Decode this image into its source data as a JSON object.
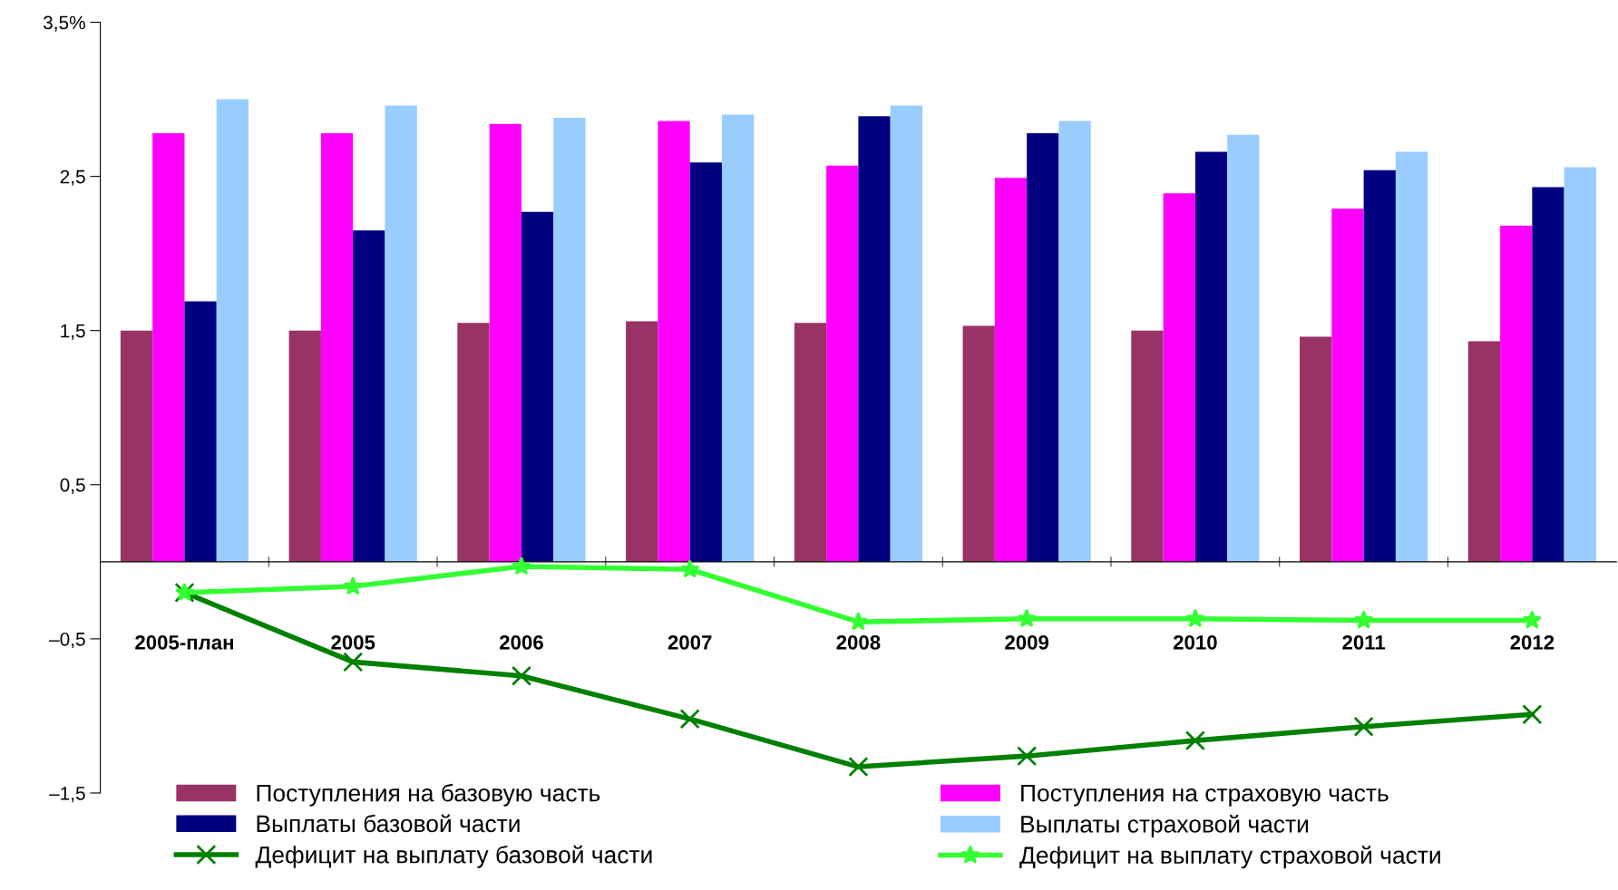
{
  "chart_data": {
    "type": "bar",
    "categories": [
      "2005-план",
      "2005",
      "2006",
      "2007",
      "2008",
      "2009",
      "2010",
      "2011",
      "2012"
    ],
    "series": [
      {
        "name": "Поступления на базовую часть",
        "color": "#993366",
        "values": [
          1.5,
          1.5,
          1.55,
          1.56,
          1.55,
          1.53,
          1.5,
          1.46,
          1.43
        ]
      },
      {
        "name": "Поступления на страховую часть",
        "color": "#ff00ff",
        "values": [
          2.78,
          2.78,
          2.84,
          2.86,
          2.57,
          2.49,
          2.39,
          2.29,
          2.18
        ]
      },
      {
        "name": "Выплаты базовой части",
        "color": "#000080",
        "values": [
          1.69,
          2.15,
          2.27,
          2.59,
          2.89,
          2.78,
          2.66,
          2.54,
          2.43
        ]
      },
      {
        "name": "Выплаты страховой части",
        "color": "#99ccff",
        "values": [
          3.0,
          2.96,
          2.88,
          2.9,
          2.96,
          2.86,
          2.77,
          2.66,
          2.56
        ]
      },
      {
        "name": "Дефицит на выплату базовой части",
        "type": "line",
        "color": "#008000",
        "marker": "cross",
        "values": [
          -0.2,
          -0.65,
          -0.74,
          -1.02,
          -1.33,
          -1.26,
          -1.16,
          -1.07,
          -0.99
        ]
      },
      {
        "name": "Дефицит на выплату страховой части",
        "type": "line",
        "color": "#33ff33",
        "marker": "star",
        "values": [
          -0.2,
          -0.16,
          -0.03,
          -0.05,
          -0.39,
          -0.37,
          -0.37,
          -0.38,
          -0.38
        ]
      }
    ],
    "ylim": [
      -1.5,
      3.5
    ],
    "yticks": [
      {
        "value": 3.5,
        "label": "3,5%"
      },
      {
        "value": 2.5,
        "label": "2,5"
      },
      {
        "value": 1.5,
        "label": "1,5"
      },
      {
        "value": 0.5,
        "label": "0,5"
      },
      {
        "value": -0.5,
        "label": "–0,5"
      },
      {
        "value": -1.5,
        "label": "–1,5"
      }
    ],
    "grid": false,
    "legend": "bottom"
  }
}
